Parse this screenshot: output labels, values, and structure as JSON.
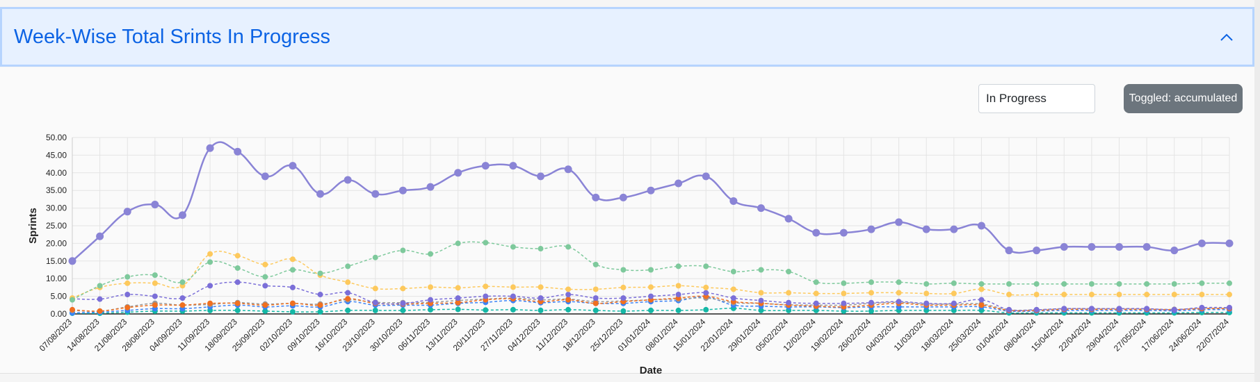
{
  "header": {
    "title": "Week-Wise Total Srints In Progress"
  },
  "controls": {
    "filter_value": "In Progress",
    "toggle_label": "Toggled: accumulated"
  },
  "chart_data": {
    "type": "line",
    "xlabel": "Date",
    "ylabel": "Sprints",
    "ylim": [
      0,
      50
    ],
    "yticks": [
      "0.00",
      "5.00",
      "10.00",
      "15.00",
      "20.00",
      "25.00",
      "30.00",
      "35.00",
      "40.00",
      "45.00",
      "50.00"
    ],
    "grid": true,
    "categories": [
      "07/08/2023",
      "14/08/2023",
      "21/08/2023",
      "28/08/2023",
      "04/09/2023",
      "11/09/2023",
      "18/09/2023",
      "25/09/2023",
      "02/10/2023",
      "09/10/2023",
      "16/10/2023",
      "23/10/2023",
      "30/10/2023",
      "06/11/2023",
      "13/11/2023",
      "20/11/2023",
      "27/11/2023",
      "04/12/2023",
      "11/12/2023",
      "18/12/2023",
      "25/12/2023",
      "01/01/2024",
      "08/01/2024",
      "15/01/2024",
      "22/01/2024",
      "29/01/2024",
      "05/02/2024",
      "12/02/2024",
      "19/02/2024",
      "26/02/2024",
      "04/03/2024",
      "11/03/2024",
      "18/03/2024",
      "25/03/2024",
      "01/04/2024",
      "08/04/2024",
      "15/04/2024",
      "22/04/2024",
      "29/04/2024",
      "27/05/2024",
      "17/06/2024",
      "24/06/2024",
      "22/07/2024"
    ],
    "series": [
      {
        "color": "#8a84d6",
        "style": "solid",
        "values": [
          15,
          22,
          29,
          31,
          28,
          47,
          46,
          39,
          42,
          34,
          38,
          34,
          35,
          36,
          40,
          42,
          42,
          39,
          41,
          33,
          33,
          35,
          37,
          39,
          32,
          30,
          27,
          23,
          23,
          24,
          26,
          24,
          24,
          25,
          18,
          18,
          19,
          19,
          19,
          19,
          18,
          20,
          20
        ]
      },
      {
        "color": "#7ec99c",
        "style": "dashed",
        "values": [
          4,
          8,
          10.5,
          11,
          9,
          14.7,
          13,
          10.5,
          12.5,
          11.5,
          13.5,
          16,
          18,
          17,
          20,
          20.2,
          19,
          18.5,
          19,
          14,
          12.5,
          12.5,
          13.5,
          13.5,
          12,
          12.5,
          12,
          9,
          8.7,
          9,
          9,
          8.5,
          8.7,
          8.5,
          8.5,
          8.5,
          8.5,
          8.5,
          8.5,
          8.5,
          8.5,
          8.7,
          8.7
        ]
      },
      {
        "color": "#fdc95d",
        "style": "dashed",
        "values": [
          4.5,
          7.5,
          8.7,
          8.7,
          8,
          17,
          16.5,
          14,
          15.5,
          11,
          9,
          7.2,
          7.2,
          7.6,
          7.4,
          7.8,
          7.6,
          7.6,
          7,
          7,
          7.5,
          7.6,
          8,
          7.5,
          7,
          6,
          6,
          5.8,
          5.8,
          6,
          6,
          5.8,
          5.8,
          7,
          5.5,
          5.5,
          5.5,
          5.5,
          5.5,
          5.5,
          5.5,
          5.5,
          5.5
        ]
      },
      {
        "color": "#7b6fd8",
        "style": "dashed",
        "values": [
          4.3,
          4.2,
          5.5,
          5,
          4.5,
          8,
          9,
          8,
          7.5,
          5.5,
          6,
          3.2,
          3,
          4,
          4.5,
          5,
          5,
          4.5,
          5.5,
          4.5,
          4.5,
          5,
          5.5,
          6,
          4.5,
          3.8,
          3.2,
          3,
          3,
          3.2,
          3.5,
          3,
          3,
          4,
          1.2,
          1.2,
          1.5,
          1.5,
          1.5,
          1.5,
          1.2,
          1.8,
          1.8
        ]
      },
      {
        "color": "#f07020",
        "style": "dashed",
        "values": [
          1.2,
          0.8,
          1.8,
          2.5,
          2.5,
          3,
          3,
          2.5,
          3,
          2.5,
          4.3,
          3,
          2.8,
          3,
          3.2,
          4,
          4.3,
          3.5,
          4,
          3,
          3.5,
          4,
          4.5,
          5,
          3.5,
          3,
          2.5,
          2.2,
          2,
          2.5,
          3,
          2.5,
          2.5,
          2.5,
          1,
          1,
          1.3,
          1.3,
          1.3,
          1.3,
          1.2,
          1.5,
          1.5
        ]
      },
      {
        "color": "#999999",
        "style": "dashed",
        "values": [
          1,
          0.8,
          2,
          3,
          2.5,
          2.7,
          3.2,
          2.8,
          3,
          2.8,
          4,
          3.3,
          3.2,
          3.3,
          3.8,
          4.2,
          4.5,
          4,
          4.2,
          3.5,
          3.7,
          4,
          4.2,
          4.5,
          3.2,
          3,
          2.6,
          2.5,
          2.5,
          3,
          3.3,
          2.8,
          2.8,
          2.8,
          1.2,
          1.2,
          1.5,
          1.5,
          1.5,
          1.4,
          1.3,
          1.6,
          1.6
        ]
      },
      {
        "color": "#3b82f6",
        "style": "dashed",
        "values": [
          0.3,
          0.5,
          1,
          1.5,
          1.5,
          2,
          2.5,
          2,
          2.3,
          2,
          3.5,
          2.5,
          2.5,
          2.5,
          3,
          3.3,
          3.8,
          3.2,
          3.5,
          3,
          3,
          3.5,
          3.8,
          4.8,
          2.5,
          2.2,
          2,
          2,
          1.8,
          2,
          2,
          2,
          2,
          2,
          0.8,
          0.8,
          1,
          1,
          1,
          1,
          0.9,
          1.2,
          1.2
        ]
      },
      {
        "color": "#14b8a6",
        "style": "dashed",
        "values": [
          0.2,
          0.2,
          0.5,
          0.8,
          0.8,
          1,
          1,
          0.8,
          0.6,
          0.6,
          1,
          1,
          1,
          1.2,
          1.3,
          1.1,
          1.2,
          1,
          1.2,
          1,
          0.8,
          1,
          1,
          1.2,
          1.6,
          1,
          1,
          1,
          0.8,
          0.8,
          1,
          1,
          1,
          1,
          0.3,
          0.3,
          0.3,
          0.3,
          0.3,
          0.3,
          0.3,
          0.4,
          0.4
        ]
      },
      {
        "color": "#222222",
        "style": "solid",
        "values": [
          0,
          0,
          0,
          0,
          0,
          0,
          0,
          0,
          0,
          0,
          0,
          0,
          0,
          0,
          0,
          0,
          0,
          0,
          0,
          0,
          0,
          0,
          0,
          0,
          0,
          0,
          0,
          0,
          0,
          0,
          0,
          0,
          0,
          0,
          0,
          0,
          0,
          0,
          0,
          0,
          0,
          0,
          0
        ]
      }
    ]
  },
  "icons": {
    "collapse": "chevron-up-icon"
  }
}
